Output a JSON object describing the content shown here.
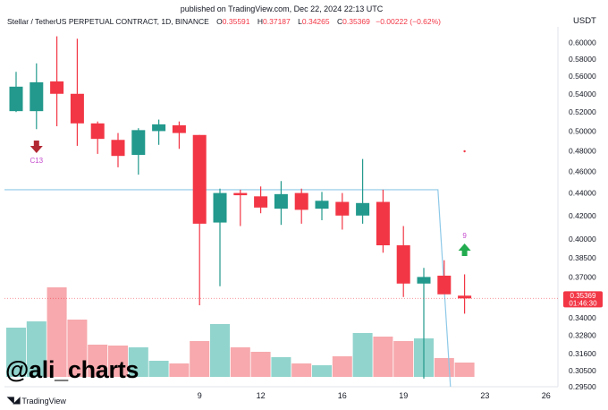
{
  "published": "published on TradingView.com, Dec 22, 2024 22:13 UTC",
  "header": {
    "symbol": "Stellar / TetherUS PERPETUAL CONTRACT, 1D, BINANCE",
    "o_label": "O",
    "o_val": "0.35591",
    "h_label": "H",
    "h_val": "0.37187",
    "l_label": "L",
    "l_val": "0.34265",
    "c_label": "C",
    "c_val": "0.35369",
    "chg": "−0.00222 (−0.62%)"
  },
  "currency": "USDT",
  "watermark": "@ali_charts",
  "footer_brand": "TradingView",
  "colors": {
    "up": "#22998c",
    "down": "#f23645",
    "vol_up": "#91d4cd",
    "vol_down": "#f7a9ad",
    "level": "#8ec9e8"
  },
  "price_label": {
    "value": "0.35369",
    "countdown": "01:46:30"
  },
  "chart_data": {
    "type": "candlestick",
    "yscale": "log",
    "ylim": [
      0.295,
      0.62
    ],
    "y_ticks": [
      "0.60000",
      "0.58000",
      "0.56000",
      "0.54000",
      "0.52000",
      "0.50000",
      "0.48000",
      "0.46000",
      "0.44000",
      "0.42000",
      "0.40000",
      "0.38500",
      "0.37000",
      "0.35500",
      "0.34000",
      "0.32800",
      "0.31600",
      "0.30500",
      "0.29500"
    ],
    "x_ticks": [
      {
        "label": "9",
        "index": 9
      },
      {
        "label": "12",
        "index": 12
      },
      {
        "label": "16",
        "index": 16
      },
      {
        "label": "19",
        "index": 19
      },
      {
        "label": "23",
        "index": 23
      },
      {
        "label": "26",
        "index": 26
      }
    ],
    "candles": [
      {
        "o": 0.521,
        "h": 0.565,
        "l": 0.52,
        "c": 0.548,
        "v": 0.55
      },
      {
        "o": 0.521,
        "h": 0.575,
        "l": 0.502,
        "c": 0.553,
        "v": 0.62
      },
      {
        "o": 0.554,
        "h": 0.608,
        "l": 0.505,
        "c": 0.54,
        "v": 1.0
      },
      {
        "o": 0.54,
        "h": 0.605,
        "l": 0.485,
        "c": 0.508,
        "v": 0.64
      },
      {
        "o": 0.508,
        "h": 0.51,
        "l": 0.477,
        "c": 0.492,
        "v": 0.36
      },
      {
        "o": 0.491,
        "h": 0.498,
        "l": 0.464,
        "c": 0.475,
        "v": 0.35
      },
      {
        "o": 0.476,
        "h": 0.503,
        "l": 0.457,
        "c": 0.501,
        "v": 0.33
      },
      {
        "o": 0.5,
        "h": 0.512,
        "l": 0.486,
        "c": 0.507,
        "v": 0.18
      },
      {
        "o": 0.506,
        "h": 0.51,
        "l": 0.482,
        "c": 0.498,
        "v": 0.15
      },
      {
        "o": 0.496,
        "h": 0.496,
        "l": 0.349,
        "c": 0.413,
        "v": 0.4
      },
      {
        "o": 0.414,
        "h": 0.444,
        "l": 0.363,
        "c": 0.44,
        "v": 0.59
      },
      {
        "o": 0.44,
        "h": 0.443,
        "l": 0.411,
        "c": 0.438,
        "v": 0.33
      },
      {
        "o": 0.437,
        "h": 0.446,
        "l": 0.422,
        "c": 0.427,
        "v": 0.28
      },
      {
        "o": 0.426,
        "h": 0.451,
        "l": 0.412,
        "c": 0.439,
        "v": 0.22
      },
      {
        "o": 0.44,
        "h": 0.444,
        "l": 0.413,
        "c": 0.425,
        "v": 0.15
      },
      {
        "o": 0.426,
        "h": 0.441,
        "l": 0.416,
        "c": 0.433,
        "v": 0.13
      },
      {
        "o": 0.432,
        "h": 0.44,
        "l": 0.408,
        "c": 0.42,
        "v": 0.23
      },
      {
        "o": 0.42,
        "h": 0.472,
        "l": 0.413,
        "c": 0.431,
        "v": 0.49
      },
      {
        "o": 0.432,
        "h": 0.443,
        "l": 0.389,
        "c": 0.395,
        "v": 0.45
      },
      {
        "o": 0.395,
        "h": 0.411,
        "l": 0.355,
        "c": 0.365,
        "v": 0.4
      },
      {
        "o": 0.365,
        "h": 0.377,
        "l": 0.3,
        "c": 0.37,
        "v": 0.43
      },
      {
        "o": 0.371,
        "h": 0.383,
        "l": 0.358,
        "c": 0.357,
        "v": 0.21
      },
      {
        "o": 0.356,
        "h": 0.372,
        "l": 0.343,
        "c": 0.354,
        "v": 0.16
      }
    ],
    "level_line": {
      "value": 0.443,
      "to_index": 21
    },
    "annotations": [
      {
        "type": "sell-arrow",
        "index": 1,
        "text": "C13"
      },
      {
        "type": "buy-arrow",
        "index": 22,
        "text": "9"
      }
    ]
  }
}
